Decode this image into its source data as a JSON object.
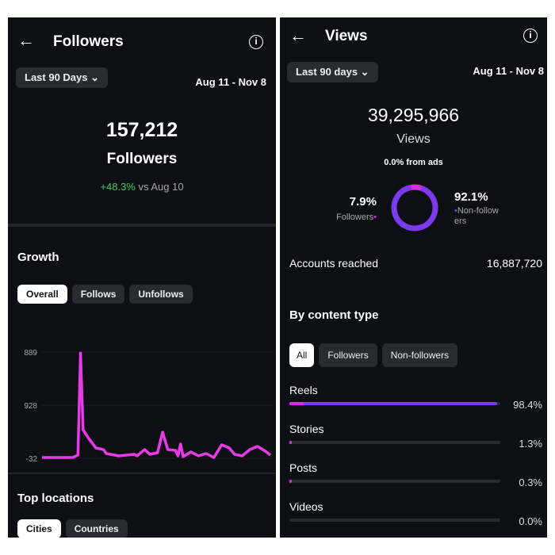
{
  "followers_panel": {
    "title": "Followers",
    "period": "Last 90 Days",
    "range": "Aug 11 - Nov 8",
    "count": "157,212",
    "count_label": "Followers",
    "change": "+48.3%",
    "change_suffix": "vs Aug 10",
    "growth_title": "Growth",
    "tabs": [
      {
        "label": "Overall",
        "selected": true
      },
      {
        "label": "Follows"
      },
      {
        "label": "Unfollows"
      }
    ],
    "locations_title": "Top locations",
    "location_tabs": [
      {
        "label": "Cities",
        "selected": true
      },
      {
        "label": "Countries"
      }
    ]
  },
  "chart_data": {
    "type": "line",
    "y_tick_labels": [
      "889",
      "928",
      "-32"
    ],
    "ylim": [
      -32,
      1889
    ],
    "line_color": "#e83ae8",
    "x": [
      0,
      12,
      14,
      15,
      16,
      18,
      21,
      24,
      25,
      30,
      36,
      37,
      40,
      42,
      45,
      47,
      49,
      52,
      53,
      54,
      55,
      58,
      61,
      64,
      67,
      70,
      73,
      75,
      78,
      81,
      84,
      87,
      89
    ],
    "values": [
      -18,
      -18,
      25,
      1870,
      483,
      340,
      154,
      125,
      54,
      11,
      40,
      11,
      125,
      40,
      68,
      440,
      125,
      111,
      11,
      225,
      -3,
      82,
      11,
      54,
      -18,
      211,
      154,
      40,
      11,
      125,
      183,
      97,
      25
    ]
  },
  "views_panel": {
    "title": "Views",
    "period": "Last 90 days",
    "range": "Aug 11 - Nov 8",
    "count": "39,295,966",
    "count_label": "Views",
    "ads": "0.0% from ads",
    "followers_pct": "7.9%",
    "followers_label": "Followers",
    "followers_fraction": 0.079,
    "nonfollowers_pct": "92.1%",
    "nonfollowers_label": "Non-follow ers",
    "colors": {
      "followers": "#d62fe0",
      "nonfollowers": "#7c3aed"
    },
    "reached_label": "Accounts reached",
    "reached_value": "16,887,720",
    "content_title": "By content type",
    "tabs": [
      {
        "label": "All",
        "selected": true
      },
      {
        "label": "Followers"
      },
      {
        "label": "Non-followers"
      }
    ],
    "types": [
      {
        "label": "Reels",
        "value": "98.4%",
        "fraction": 0.984,
        "followers_fraction": 0.07
      },
      {
        "label": "Stories",
        "value": "1.3%",
        "fraction": 0.013,
        "followers_fraction": 0.01
      },
      {
        "label": "Posts",
        "value": "0.3%",
        "fraction": 0.003,
        "followers_fraction": 0
      },
      {
        "label": "Videos",
        "value": "0.0%",
        "fraction": 0,
        "followers_fraction": 0
      }
    ]
  }
}
